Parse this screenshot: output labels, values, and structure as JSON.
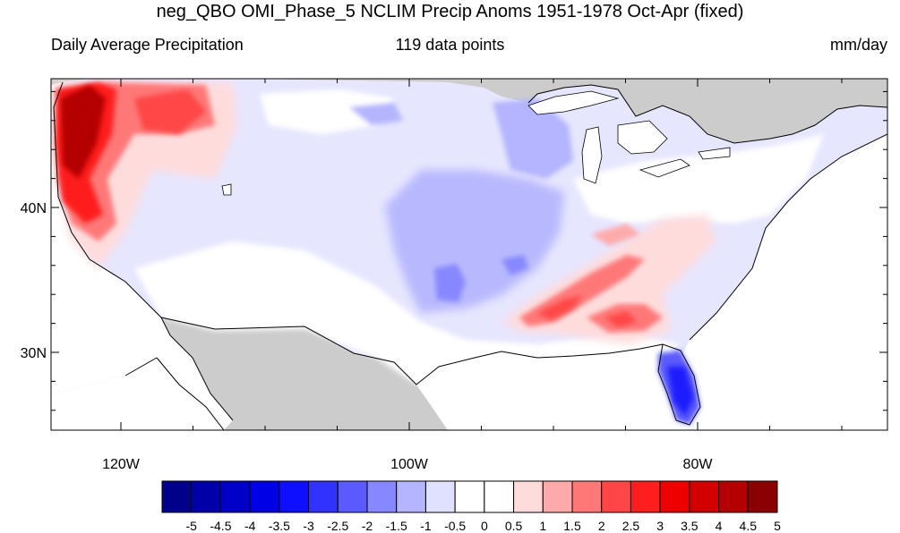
{
  "title": "neg_QBO OMI_Phase_5 NCLIM Precip Anoms 1951-1978 Oct-Apr (fixed)",
  "subtitle_left": "Daily Average Precipitation",
  "subtitle_center": "119 data points",
  "subtitle_right": "mm/day",
  "lat_ticks": [
    {
      "value": 40,
      "label": "40N"
    },
    {
      "value": 30,
      "label": "30N"
    }
  ],
  "lon_ticks": [
    {
      "value": -120,
      "label": "120W"
    },
    {
      "value": -100,
      "label": "100W"
    },
    {
      "value": -80,
      "label": "80W"
    }
  ],
  "colorbar": {
    "labels": [
      "-5",
      "-4.5",
      "-4",
      "-3.5",
      "-3",
      "-2.5",
      "-2",
      "-1.5",
      "-1",
      "-0.5",
      "0",
      "0.5",
      "1",
      "1.5",
      "2",
      "2.5",
      "3",
      "3.5",
      "4",
      "4.5",
      "5"
    ],
    "colors": [
      "#00008b",
      "#0000a8",
      "#0000c8",
      "#0000e6",
      "#0f0fff",
      "#3232ff",
      "#5a5aff",
      "#8787ff",
      "#b4b4ff",
      "#e0e0ff",
      "#ffffff",
      "#ffffff",
      "#ffdcdc",
      "#ffaaaa",
      "#ff7878",
      "#ff4646",
      "#ff1e1e",
      "#ee0000",
      "#d20000",
      "#b40000",
      "#8b0000"
    ]
  },
  "colors": {
    "land_outside": "#cccccc",
    "ocean": "#ffffff",
    "coastline": "#000000"
  }
}
